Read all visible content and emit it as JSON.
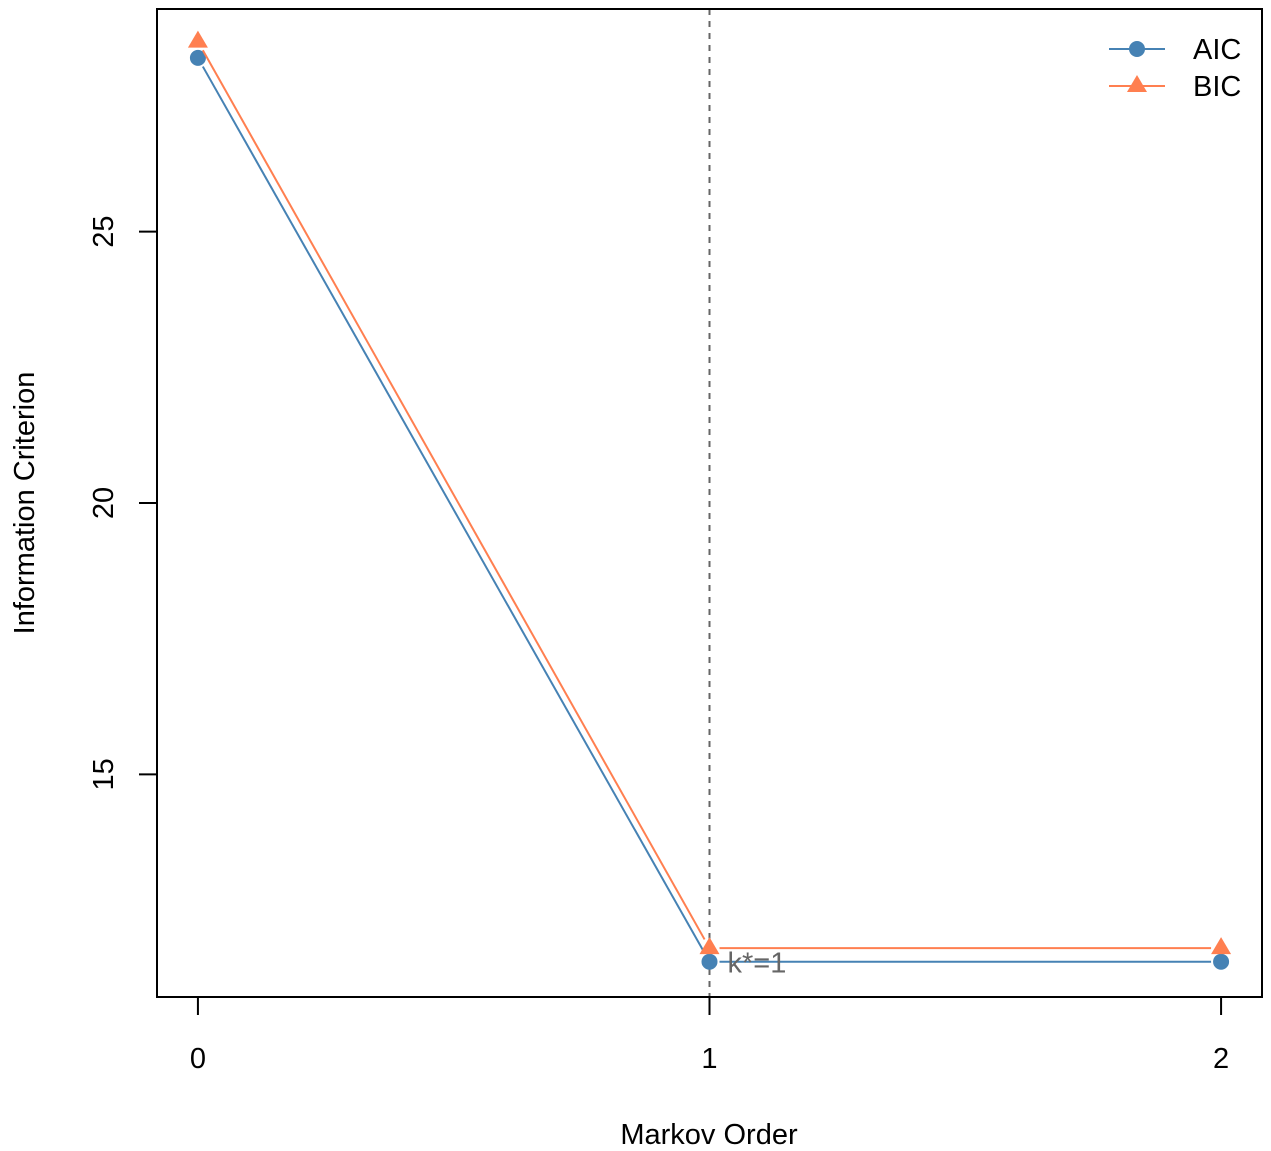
{
  "chart_data": {
    "type": "line",
    "title": "",
    "xlabel": "Markov Order",
    "ylabel": "Information Criterion",
    "x": [
      0,
      1,
      2
    ],
    "x_tick_labels": [
      "0",
      "1",
      "2"
    ],
    "y_ticks": [
      15,
      20,
      25
    ],
    "y_tick_labels": [
      "15",
      "20",
      "25"
    ],
    "xlim": [
      -0.08,
      2.08
    ],
    "ylim": [
      10.9,
      29.1
    ],
    "grid": false,
    "legend_position": "top-right",
    "series": [
      {
        "name": "AIC",
        "values": [
          28.2,
          11.55,
          11.55
        ],
        "color": "#4682B4",
        "marker": "circle"
      },
      {
        "name": "BIC",
        "values": [
          28.5,
          11.8,
          11.8
        ],
        "color": "#FF7F50",
        "marker": "triangle"
      }
    ],
    "reference_line": {
      "x": 1,
      "style": "dashed",
      "color": "#666666"
    },
    "annotation": {
      "text": "k*=1",
      "x": 1,
      "y": 11.55,
      "color": "#666666"
    }
  }
}
